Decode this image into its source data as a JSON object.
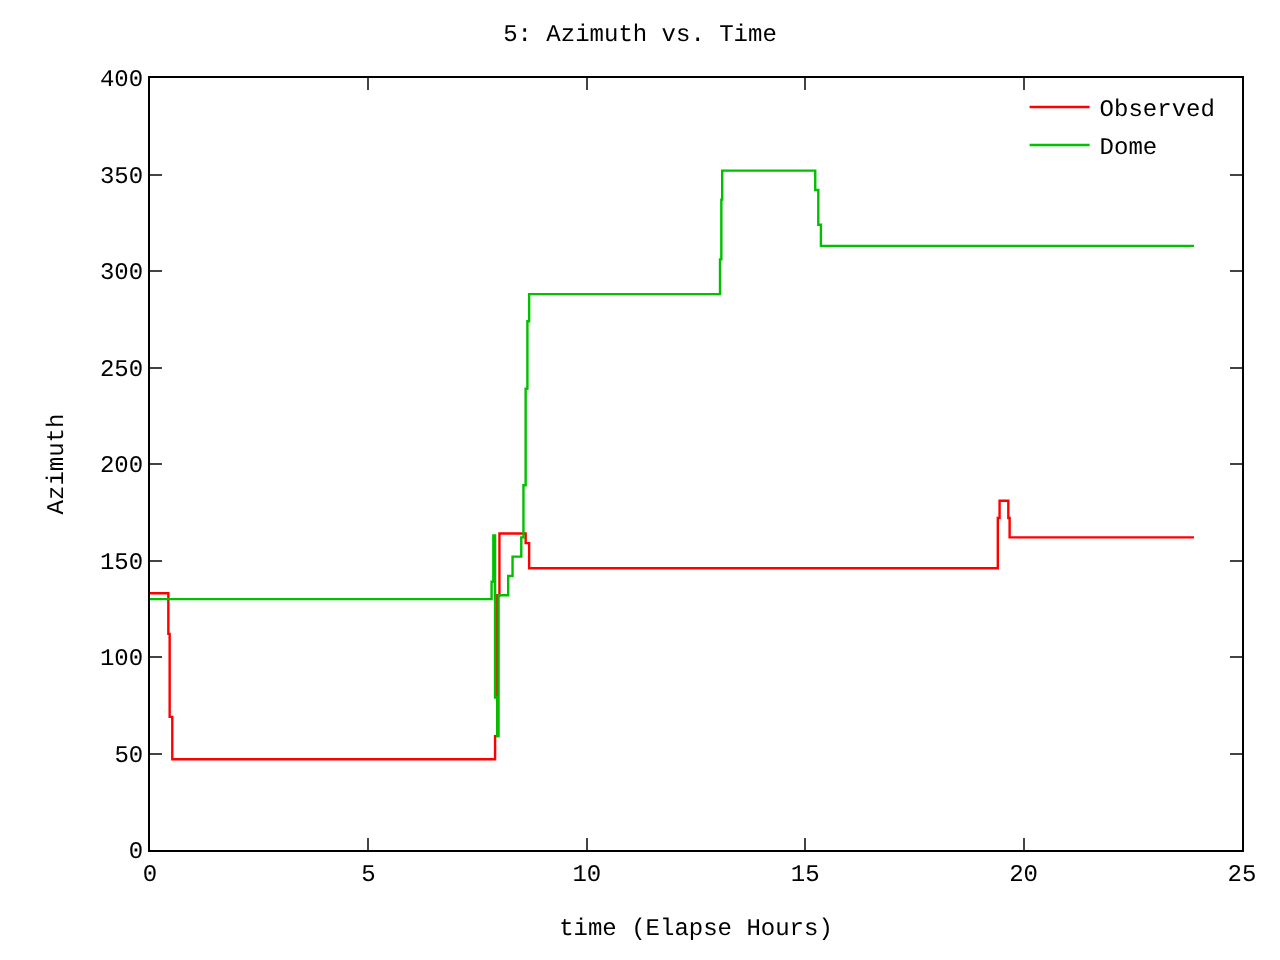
{
  "chart_data": {
    "type": "step",
    "title": "5: Azimuth vs. Time",
    "xlabel": "time (Elapse Hours)",
    "ylabel": "Azimuth",
    "xlim": [
      0,
      25
    ],
    "xticks": [
      0,
      5,
      10,
      15,
      20,
      25
    ],
    "ylim": [
      0,
      400
    ],
    "yticks": [
      0,
      50,
      100,
      150,
      200,
      250,
      300,
      350,
      400
    ],
    "legend": "top right",
    "marker": "none",
    "line_style": "solid",
    "series": [
      {
        "name": "Observed",
        "color": "#ff0000",
        "x": [
          0,
          0.42,
          0.45,
          0.51,
          7.9,
          7.95,
          8.0,
          8.1,
          8.6,
          8.68,
          19.41,
          19.45,
          19.6,
          19.65,
          19.68,
          23.9
        ],
        "values": [
          133,
          112,
          69,
          47,
          59,
          132,
          164,
          164,
          159,
          146,
          172,
          181,
          181,
          172,
          162,
          162
        ]
      },
      {
        "name": "Dome",
        "color": "#00c000",
        "x": [
          0,
          7.82,
          7.86,
          7.9,
          7.95,
          7.98,
          8.2,
          8.3,
          8.5,
          8.55,
          8.6,
          8.64,
          8.68,
          13.05,
          13.08,
          13.1,
          15.23,
          15.3,
          15.36,
          23.9
        ],
        "values": [
          130,
          139,
          163,
          79,
          59,
          132,
          142,
          152,
          162,
          189,
          239,
          274,
          288,
          306,
          337,
          352,
          342,
          324,
          313,
          313
        ]
      }
    ]
  }
}
